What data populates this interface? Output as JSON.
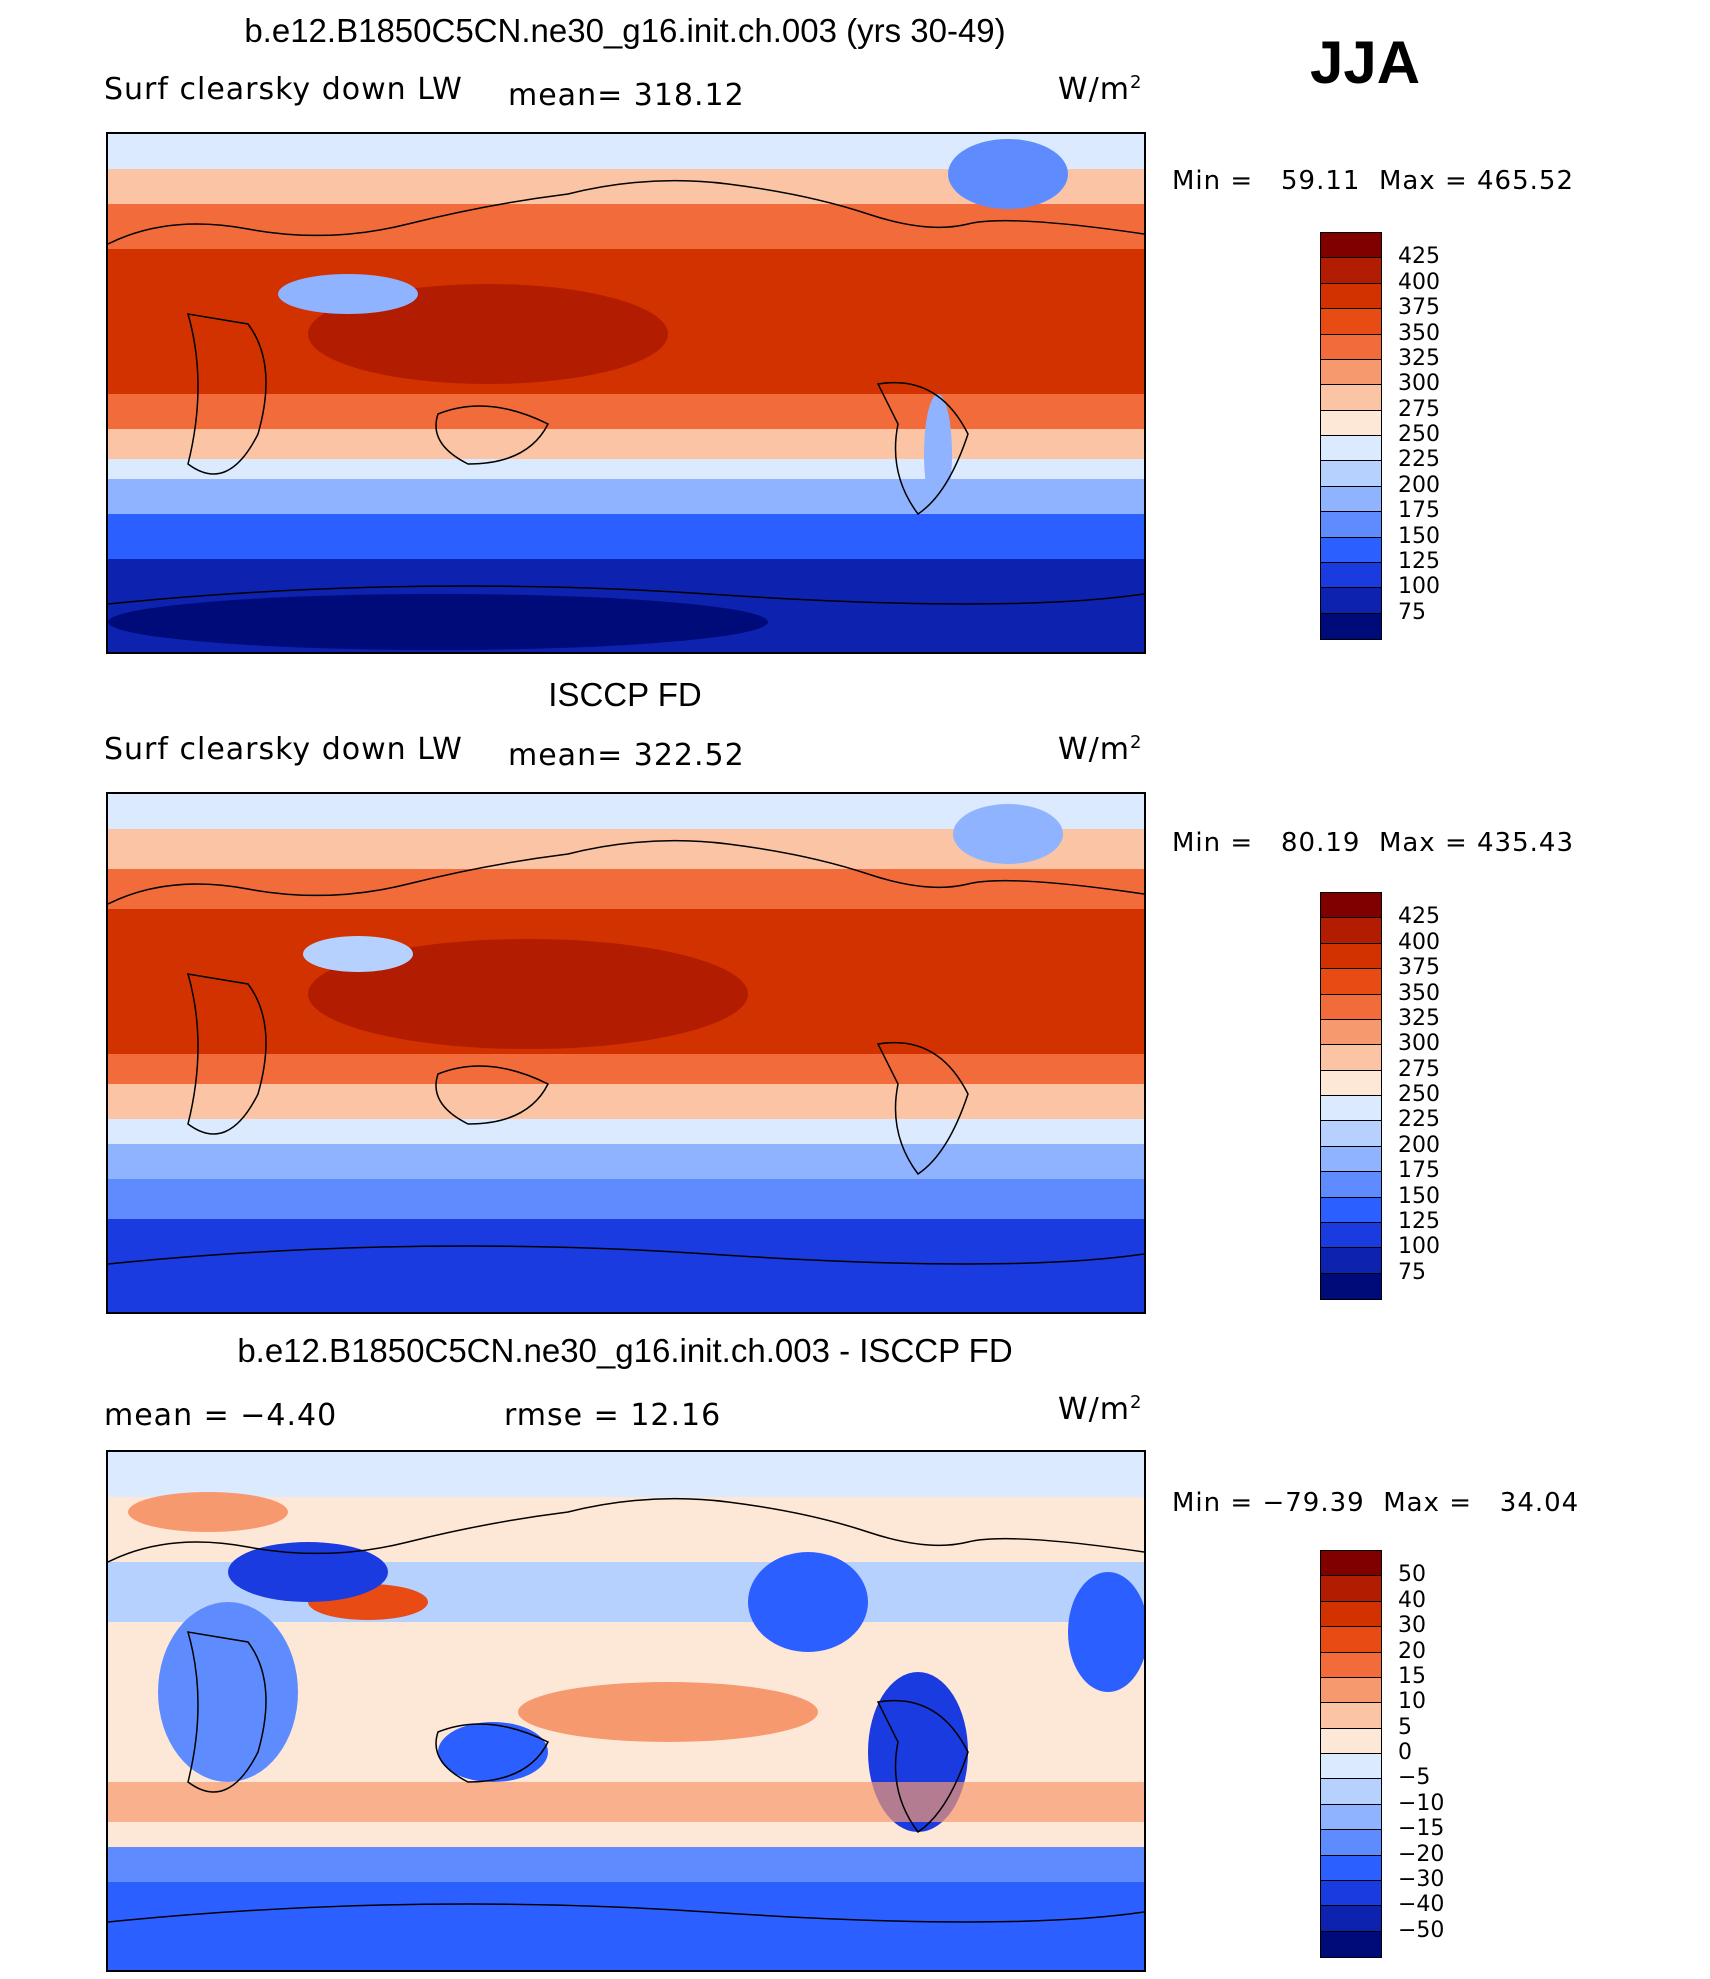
{
  "season": "JJA",
  "panels": [
    {
      "title": "b.e12.B1850C5CN.ne30_g16.init.ch.003 (yrs 30-49)",
      "left_label": "Surf clearsky down LW",
      "center_label": "mean= 318.12",
      "units": "W/m",
      "units_sup": "2",
      "min_max": "Min =   59.11  Max = 465.52",
      "colorbar": {
        "labels": [
          "425",
          "400",
          "375",
          "350",
          "325",
          "300",
          "275",
          "250",
          "225",
          "200",
          "175",
          "150",
          "125",
          "100",
          "75"
        ],
        "colors": [
          "#800000",
          "#b21c00",
          "#d23200",
          "#e84b14",
          "#f26b3a",
          "#f7996e",
          "#fbc4a4",
          "#fde8d8",
          "#dceaff",
          "#b7d1ff",
          "#8fb3ff",
          "#5e8cff",
          "#2c5fff",
          "#1a3be0",
          "#0d23b0",
          "#000b7a"
        ]
      }
    },
    {
      "title": "ISCCP FD",
      "left_label": "Surf clearsky down LW",
      "center_label": "mean= 322.52",
      "units": "W/m",
      "units_sup": "2",
      "min_max": "Min =   80.19  Max = 435.43",
      "colorbar": {
        "labels": [
          "425",
          "400",
          "375",
          "350",
          "325",
          "300",
          "275",
          "250",
          "225",
          "200",
          "175",
          "150",
          "125",
          "100",
          "75"
        ],
        "colors": [
          "#800000",
          "#b21c00",
          "#d23200",
          "#e84b14",
          "#f26b3a",
          "#f7996e",
          "#fbc4a4",
          "#fde8d8",
          "#dceaff",
          "#b7d1ff",
          "#8fb3ff",
          "#5e8cff",
          "#2c5fff",
          "#1a3be0",
          "#0d23b0",
          "#000b7a"
        ]
      }
    },
    {
      "title": "b.e12.B1850C5CN.ne30_g16.init.ch.003 - ISCCP FD",
      "left_label": "mean =   −4.40",
      "center_label": "rmse =   12.16",
      "units": "W/m",
      "units_sup": "2",
      "min_max": "Min = −79.39  Max =   34.04",
      "colorbar": {
        "labels": [
          "50",
          "40",
          "30",
          "20",
          "15",
          "10",
          "5",
          "0",
          "−5",
          "−10",
          "−15",
          "−20",
          "−30",
          "−40",
          "−50"
        ],
        "colors": [
          "#800000",
          "#b21c00",
          "#d23200",
          "#e84b14",
          "#f26b3a",
          "#f7996e",
          "#fbc4a4",
          "#fde8d8",
          "#dceaff",
          "#b7d1ff",
          "#8fb3ff",
          "#5e8cff",
          "#2c5fff",
          "#1a3be0",
          "#0d23b0",
          "#000b7a"
        ]
      }
    }
  ],
  "map_colors": {
    "tropics_hot": "#d23200",
    "warm": "#f26b3a",
    "mild": "#fbc4a4",
    "cool": "#dceaff",
    "cold": "#5e8cff",
    "very_cold": "#0d23b0",
    "polar": "#000b7a",
    "diff_neutral": "#fde8d8",
    "diff_neg": "#8fb3ff",
    "diff_strong_neg": "#1a3be0",
    "diff_pos": "#f7996e"
  }
}
